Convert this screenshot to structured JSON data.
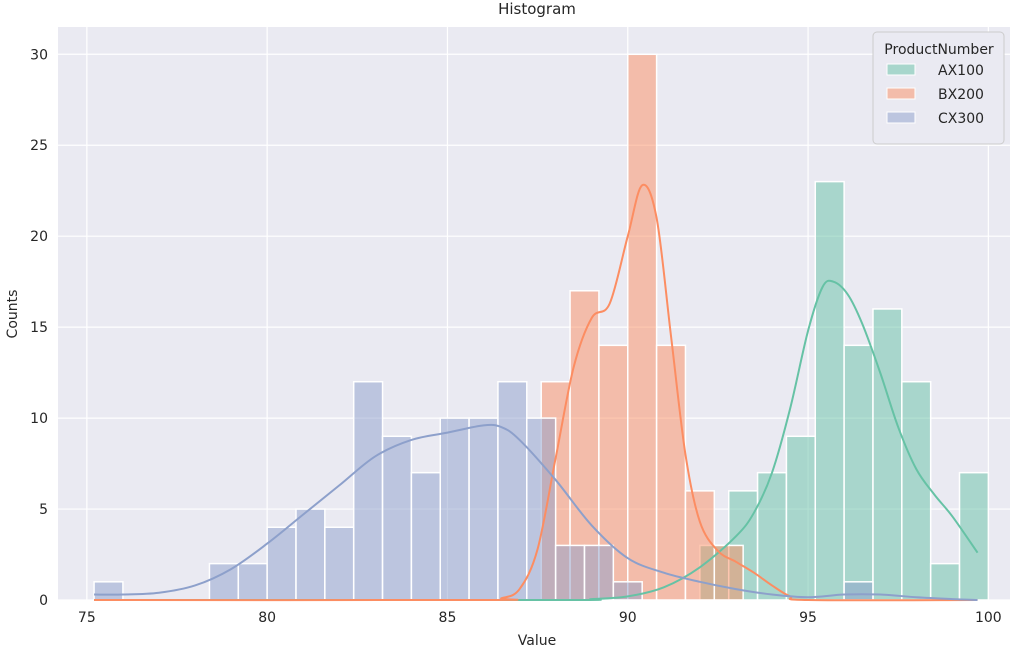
{
  "chart_data": {
    "type": "histogram",
    "title": "Histogram",
    "xlabel": "Value",
    "ylabel": "Counts",
    "xlim": [
      74.2,
      100.6
    ],
    "ylim": [
      0,
      31.5
    ],
    "xticks": [
      75,
      80,
      85,
      90,
      95,
      100
    ],
    "yticks": [
      0,
      5,
      10,
      15,
      20,
      25,
      30
    ],
    "grid": true,
    "background": "#eaeaf2",
    "legend": {
      "title": "ProductNumber",
      "placement": "top-right"
    },
    "bin_start": 75.2,
    "bin_width": 0.8,
    "series": [
      {
        "name": "AX100",
        "color": "#66c2a5",
        "bars": [
          {
            "x": 92.0,
            "count": 3
          },
          {
            "x": 92.8,
            "count": 6
          },
          {
            "x": 93.6,
            "count": 7
          },
          {
            "x": 94.4,
            "count": 9
          },
          {
            "x": 95.2,
            "count": 23
          },
          {
            "x": 96.0,
            "count": 14
          },
          {
            "x": 96.8,
            "count": 16
          },
          {
            "x": 97.6,
            "count": 12
          },
          {
            "x": 98.4,
            "count": 2
          },
          {
            "x": 99.2,
            "count": 7
          }
        ],
        "kde": [
          [
            75.2,
            0
          ],
          [
            88,
            0
          ],
          [
            89,
            0.05
          ],
          [
            90,
            0.2
          ],
          [
            91,
            0.7
          ],
          [
            92,
            1.8
          ],
          [
            93,
            3.5
          ],
          [
            93.5,
            4.8
          ],
          [
            94,
            7
          ],
          [
            94.5,
            10.5
          ],
          [
            95,
            14.8
          ],
          [
            95.4,
            17.2
          ],
          [
            95.7,
            17.5
          ],
          [
            96.1,
            16.8
          ],
          [
            96.5,
            15.2
          ],
          [
            97,
            12.5
          ],
          [
            97.5,
            9.5
          ],
          [
            98,
            7.2
          ],
          [
            98.5,
            5.8
          ],
          [
            99,
            4.6
          ],
          [
            99.7,
            2.6
          ]
        ]
      },
      {
        "name": "BX200",
        "color": "#fc8d62",
        "bars": [
          {
            "x": 87.6,
            "count": 12
          },
          {
            "x": 88.4,
            "count": 17
          },
          {
            "x": 89.2,
            "count": 14
          },
          {
            "x": 90.0,
            "count": 30
          },
          {
            "x": 90.8,
            "count": 14
          },
          {
            "x": 91.6,
            "count": 6
          },
          {
            "x": 92.4,
            "count": 3
          }
        ],
        "kde": [
          [
            75.2,
            0
          ],
          [
            86,
            0
          ],
          [
            86.5,
            0.1
          ],
          [
            87,
            0.6
          ],
          [
            87.5,
            2.8
          ],
          [
            88,
            7.8
          ],
          [
            88.5,
            12.8
          ],
          [
            89,
            15.5
          ],
          [
            89.5,
            16.3
          ],
          [
            90,
            20
          ],
          [
            90.4,
            22.8
          ],
          [
            90.8,
            21
          ],
          [
            91.2,
            14.5
          ],
          [
            91.6,
            8
          ],
          [
            92,
            4.3
          ],
          [
            92.5,
            2.7
          ],
          [
            93,
            2.1
          ],
          [
            93.5,
            1.5
          ],
          [
            94,
            0.8
          ],
          [
            94.5,
            0.2
          ],
          [
            95,
            0
          ],
          [
            99.7,
            0
          ]
        ]
      },
      {
        "name": "CX300",
        "color": "#8da0cb",
        "bars": [
          {
            "x": 75.2,
            "count": 1
          },
          {
            "x": 78.4,
            "count": 2
          },
          {
            "x": 79.2,
            "count": 2
          },
          {
            "x": 80.0,
            "count": 4
          },
          {
            "x": 80.8,
            "count": 5
          },
          {
            "x": 81.6,
            "count": 4
          },
          {
            "x": 82.4,
            "count": 12
          },
          {
            "x": 83.2,
            "count": 9
          },
          {
            "x": 84.0,
            "count": 7
          },
          {
            "x": 84.8,
            "count": 10
          },
          {
            "x": 85.6,
            "count": 10
          },
          {
            "x": 86.4,
            "count": 12
          },
          {
            "x": 87.2,
            "count": 10
          },
          {
            "x": 88.0,
            "count": 3
          },
          {
            "x": 88.8,
            "count": 3
          },
          {
            "x": 89.6,
            "count": 1
          },
          {
            "x": 96.0,
            "count": 1
          }
        ],
        "kde": [
          [
            75.2,
            0.3
          ],
          [
            76,
            0.3
          ],
          [
            77,
            0.4
          ],
          [
            78,
            0.8
          ],
          [
            79,
            1.7
          ],
          [
            80,
            3.1
          ],
          [
            81,
            4.7
          ],
          [
            82,
            6.3
          ],
          [
            83,
            7.9
          ],
          [
            84,
            8.8
          ],
          [
            85,
            9.2
          ],
          [
            86,
            9.6
          ],
          [
            86.5,
            9.5
          ],
          [
            87,
            8.8
          ],
          [
            88,
            6.6
          ],
          [
            89,
            4.1
          ],
          [
            90,
            2.3
          ],
          [
            91,
            1.5
          ],
          [
            92,
            1
          ],
          [
            93,
            0.6
          ],
          [
            94,
            0.3
          ],
          [
            95,
            0.15
          ],
          [
            96,
            0.3
          ],
          [
            97,
            0.3
          ],
          [
            98,
            0.15
          ],
          [
            99,
            0.05
          ],
          [
            99.7,
            0
          ]
        ]
      }
    ]
  }
}
